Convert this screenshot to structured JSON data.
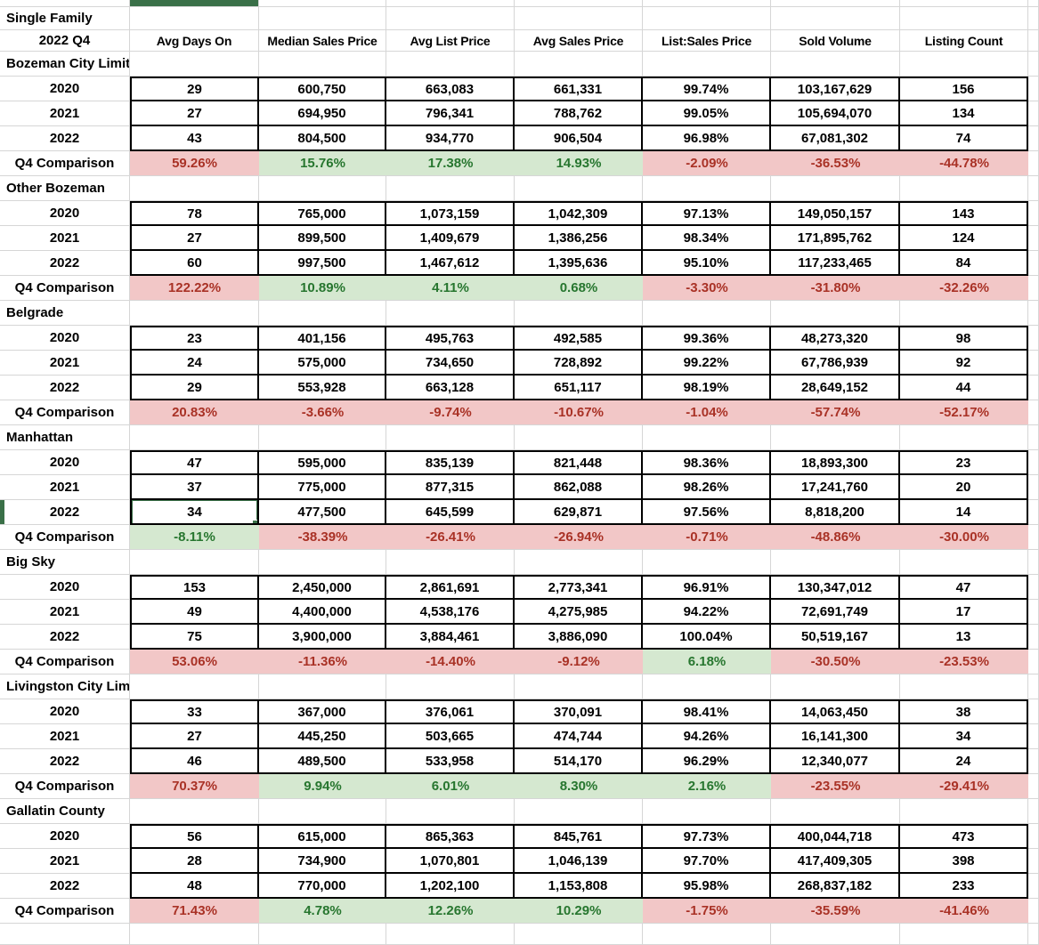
{
  "title": "Single Family",
  "subtitle": "2022 Q4",
  "comparison_label": "Q4 Comparison",
  "columns": [
    "Avg Days On",
    "Median Sales Price",
    "Avg List Price",
    "Avg Sales Price",
    "List:Sales Price",
    "Sold Volume",
    "Listing Count"
  ],
  "colors": {
    "accent_green": "#3a7048",
    "good_bg": "#d5e8d0",
    "good_text": "#27762f",
    "bad_bg": "#f2c7c7",
    "bad_text": "#a93226",
    "gridline": "#d6d6d6"
  },
  "selection": {
    "section": "Manhattan",
    "year": "2022",
    "column": "Avg Days On",
    "value": "34"
  },
  "sections": [
    {
      "name": "Bozeman City Limits",
      "rows": [
        {
          "year": "2020",
          "values": [
            "29",
            "600,750",
            "663,083",
            "661,331",
            "99.74%",
            "103,167,629",
            "156"
          ]
        },
        {
          "year": "2021",
          "values": [
            "27",
            "694,950",
            "796,341",
            "788,762",
            "99.05%",
            "105,694,070",
            "134"
          ]
        },
        {
          "year": "2022",
          "values": [
            "43",
            "804,500",
            "934,770",
            "906,504",
            "96.98%",
            "67,081,302",
            "74"
          ]
        }
      ],
      "comparison": [
        {
          "value": "59.26%",
          "status": "bad"
        },
        {
          "value": "15.76%",
          "status": "good"
        },
        {
          "value": "17.38%",
          "status": "good"
        },
        {
          "value": "14.93%",
          "status": "good"
        },
        {
          "value": "-2.09%",
          "status": "bad"
        },
        {
          "value": "-36.53%",
          "status": "bad"
        },
        {
          "value": "-44.78%",
          "status": "bad"
        }
      ]
    },
    {
      "name": "Other Bozeman",
      "rows": [
        {
          "year": "2020",
          "values": [
            "78",
            "765,000",
            "1,073,159",
            "1,042,309",
            "97.13%",
            "149,050,157",
            "143"
          ]
        },
        {
          "year": "2021",
          "values": [
            "27",
            "899,500",
            "1,409,679",
            "1,386,256",
            "98.34%",
            "171,895,762",
            "124"
          ]
        },
        {
          "year": "2022",
          "values": [
            "60",
            "997,500",
            "1,467,612",
            "1,395,636",
            "95.10%",
            "117,233,465",
            "84"
          ]
        }
      ],
      "comparison": [
        {
          "value": "122.22%",
          "status": "bad"
        },
        {
          "value": "10.89%",
          "status": "good"
        },
        {
          "value": "4.11%",
          "status": "good"
        },
        {
          "value": "0.68%",
          "status": "good"
        },
        {
          "value": "-3.30%",
          "status": "bad"
        },
        {
          "value": "-31.80%",
          "status": "bad"
        },
        {
          "value": "-32.26%",
          "status": "bad"
        }
      ]
    },
    {
      "name": "Belgrade",
      "rows": [
        {
          "year": "2020",
          "values": [
            "23",
            "401,156",
            "495,763",
            "492,585",
            "99.36%",
            "48,273,320",
            "98"
          ]
        },
        {
          "year": "2021",
          "values": [
            "24",
            "575,000",
            "734,650",
            "728,892",
            "99.22%",
            "67,786,939",
            "92"
          ]
        },
        {
          "year": "2022",
          "values": [
            "29",
            "553,928",
            "663,128",
            "651,117",
            "98.19%",
            "28,649,152",
            "44"
          ]
        }
      ],
      "comparison": [
        {
          "value": "20.83%",
          "status": "bad"
        },
        {
          "value": "-3.66%",
          "status": "bad"
        },
        {
          "value": "-9.74%",
          "status": "bad"
        },
        {
          "value": "-10.67%",
          "status": "bad"
        },
        {
          "value": "-1.04%",
          "status": "bad"
        },
        {
          "value": "-57.74%",
          "status": "bad"
        },
        {
          "value": "-52.17%",
          "status": "bad"
        }
      ]
    },
    {
      "name": "Manhattan",
      "rows": [
        {
          "year": "2020",
          "values": [
            "47",
            "595,000",
            "835,139",
            "821,448",
            "98.36%",
            "18,893,300",
            "23"
          ]
        },
        {
          "year": "2021",
          "values": [
            "37",
            "775,000",
            "877,315",
            "862,088",
            "98.26%",
            "17,241,760",
            "20"
          ]
        },
        {
          "year": "2022",
          "values": [
            "34",
            "477,500",
            "645,599",
            "629,871",
            "97.56%",
            "8,818,200",
            "14"
          ]
        }
      ],
      "comparison": [
        {
          "value": "-8.11%",
          "status": "good"
        },
        {
          "value": "-38.39%",
          "status": "bad"
        },
        {
          "value": "-26.41%",
          "status": "bad"
        },
        {
          "value": "-26.94%",
          "status": "bad"
        },
        {
          "value": "-0.71%",
          "status": "bad"
        },
        {
          "value": "-48.86%",
          "status": "bad"
        },
        {
          "value": "-30.00%",
          "status": "bad"
        }
      ]
    },
    {
      "name": "Big Sky",
      "rows": [
        {
          "year": "2020",
          "values": [
            "153",
            "2,450,000",
            "2,861,691",
            "2,773,341",
            "96.91%",
            "130,347,012",
            "47"
          ]
        },
        {
          "year": "2021",
          "values": [
            "49",
            "4,400,000",
            "4,538,176",
            "4,275,985",
            "94.22%",
            "72,691,749",
            "17"
          ]
        },
        {
          "year": "2022",
          "values": [
            "75",
            "3,900,000",
            "3,884,461",
            "3,886,090",
            "100.04%",
            "50,519,167",
            "13"
          ]
        }
      ],
      "comparison": [
        {
          "value": "53.06%",
          "status": "bad"
        },
        {
          "value": "-11.36%",
          "status": "bad"
        },
        {
          "value": "-14.40%",
          "status": "bad"
        },
        {
          "value": "-9.12%",
          "status": "bad"
        },
        {
          "value": "6.18%",
          "status": "good"
        },
        {
          "value": "-30.50%",
          "status": "bad"
        },
        {
          "value": "-23.53%",
          "status": "bad"
        }
      ]
    },
    {
      "name": "Livingston City Limits",
      "rows": [
        {
          "year": "2020",
          "values": [
            "33",
            "367,000",
            "376,061",
            "370,091",
            "98.41%",
            "14,063,450",
            "38"
          ]
        },
        {
          "year": "2021",
          "values": [
            "27",
            "445,250",
            "503,665",
            "474,744",
            "94.26%",
            "16,141,300",
            "34"
          ]
        },
        {
          "year": "2022",
          "values": [
            "46",
            "489,500",
            "533,958",
            "514,170",
            "96.29%",
            "12,340,077",
            "24"
          ]
        }
      ],
      "comparison": [
        {
          "value": "70.37%",
          "status": "bad"
        },
        {
          "value": "9.94%",
          "status": "good"
        },
        {
          "value": "6.01%",
          "status": "good"
        },
        {
          "value": "8.30%",
          "status": "good"
        },
        {
          "value": "2.16%",
          "status": "good"
        },
        {
          "value": "-23.55%",
          "status": "bad"
        },
        {
          "value": "-29.41%",
          "status": "bad"
        }
      ]
    },
    {
      "name": "Gallatin County",
      "rows": [
        {
          "year": "2020",
          "values": [
            "56",
            "615,000",
            "865,363",
            "845,761",
            "97.73%",
            "400,044,718",
            "473"
          ]
        },
        {
          "year": "2021",
          "values": [
            "28",
            "734,900",
            "1,070,801",
            "1,046,139",
            "97.70%",
            "417,409,305",
            "398"
          ]
        },
        {
          "year": "2022",
          "values": [
            "48",
            "770,000",
            "1,202,100",
            "1,153,808",
            "95.98%",
            "268,837,182",
            "233"
          ]
        }
      ],
      "comparison": [
        {
          "value": "71.43%",
          "status": "bad"
        },
        {
          "value": "4.78%",
          "status": "good"
        },
        {
          "value": "12.26%",
          "status": "good"
        },
        {
          "value": "10.29%",
          "status": "good"
        },
        {
          "value": "-1.75%",
          "status": "bad"
        },
        {
          "value": "-35.59%",
          "status": "bad"
        },
        {
          "value": "-41.46%",
          "status": "bad"
        }
      ]
    }
  ]
}
